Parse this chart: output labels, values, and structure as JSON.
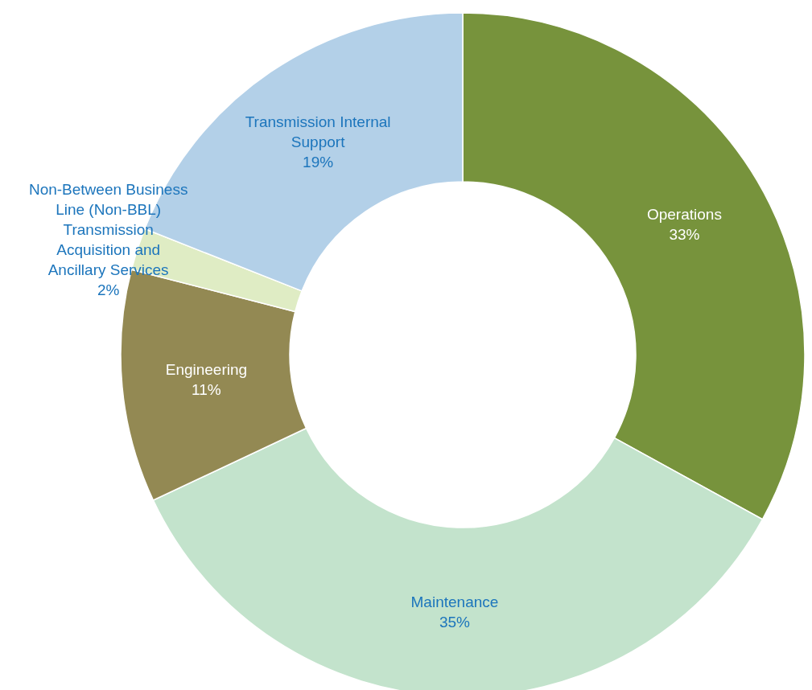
{
  "chart_data": {
    "type": "donut",
    "categories": [
      "Operations",
      "Maintenance",
      "Engineering",
      "Non-Between Business Line (Non-BBL) Transmission Acquisition and Ancillary Services",
      "Transmission Internal Support"
    ],
    "values": [
      33,
      35,
      11,
      2,
      19
    ],
    "value_labels": [
      "33%",
      "35%",
      "11%",
      "2%",
      "19%"
    ],
    "colors": [
      "#77933c",
      "#c3e3cc",
      "#938953",
      "#dfecc4",
      "#b3d0e8"
    ]
  }
}
